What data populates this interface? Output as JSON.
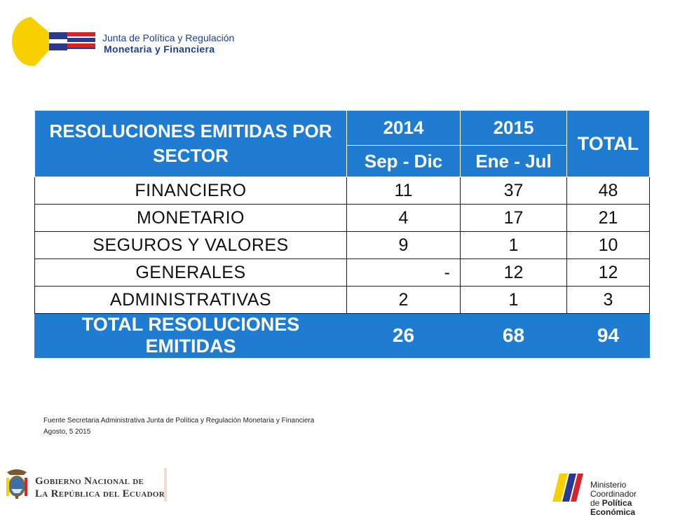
{
  "header": {
    "org_line1": "Junta de Política y Regulación",
    "org_line2": "Monetaria y Financiera"
  },
  "table": {
    "title": "RESOLUCIONES EMITIDAS POR SECTOR",
    "year1": "2014",
    "year2": "2015",
    "total_header": "TOTAL",
    "range1": "Sep - Dic",
    "range2": "Ene - Jul",
    "rows": [
      {
        "sector": "FINANCIERO",
        "v2014": "11",
        "v2015": "37",
        "total": "48"
      },
      {
        "sector": "MONETARIO",
        "v2014": "4",
        "v2015": "17",
        "total": "21"
      },
      {
        "sector": "SEGUROS Y VALORES",
        "v2014": "9",
        "v2015": "1",
        "total": "10"
      },
      {
        "sector": "GENERALES",
        "v2014": "-",
        "v2015": "12",
        "total": "12"
      },
      {
        "sector": "ADMINISTRATIVAS",
        "v2014": "2",
        "v2015": "1",
        "total": "3"
      }
    ],
    "totals": {
      "label": "TOTAL RESOLUCIONES EMITIDAS",
      "v2014": "26",
      "v2015": "68",
      "total": "94"
    }
  },
  "note": {
    "source": "Fuente Secretaria Administrativa Junta de Política y Regulación Monetaria y Financiera",
    "date": "Agosto, 5 2015"
  },
  "footer": {
    "gov_line1": "Gobierno Nacional de",
    "gov_line2": "La República del Ecuador",
    "ministry_line1": "Ministerio Coordinador",
    "ministry_line2_prefix": "de ",
    "ministry_line2_bold": "Política Económica"
  },
  "colors": {
    "header_blue": "#1f7cd0",
    "logo_yellow": "#f7d000",
    "logo_blue": "#2a3b8f",
    "logo_red": "#d8232a"
  }
}
